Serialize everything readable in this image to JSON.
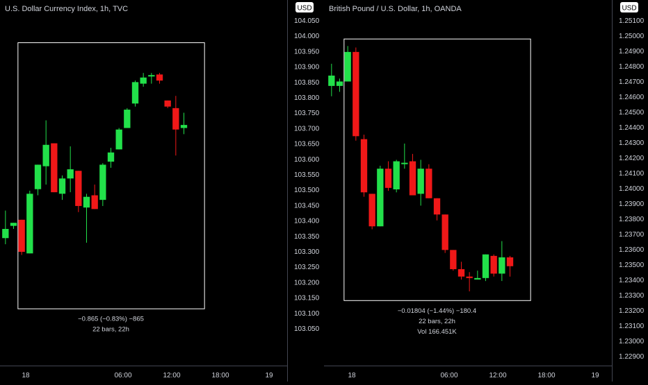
{
  "colors": {
    "background": "#000000",
    "text": "#d1d4dc",
    "up": "#22e04a",
    "down": "#f01818",
    "divider": "#434651",
    "box": "#ffffff",
    "badge_bg": "#ffffff",
    "badge_text": "#000000"
  },
  "chart_data": [
    {
      "type": "candlestick",
      "title": "U.S. Dollar Currency Index, 1h, TVC",
      "currency_badge": "USD",
      "ylim": [
        103.0,
        104.1
      ],
      "yticks": [
        "104.050",
        "104.000",
        "103.950",
        "103.900",
        "103.850",
        "103.800",
        "103.750",
        "103.700",
        "103.650",
        "103.600",
        "103.550",
        "103.500",
        "103.450",
        "103.400",
        "103.350",
        "103.300",
        "103.250",
        "103.200",
        "103.150",
        "103.100",
        "103.050"
      ],
      "xticks": [
        {
          "label": "18",
          "t": 18
        },
        {
          "label": "06:00",
          "t": 30
        },
        {
          "label": "12:00",
          "t": 36
        },
        {
          "label": "18:00",
          "t": 42
        },
        {
          "label": "19",
          "t": 48
        }
      ],
      "t_range": [
        15.5,
        50.5
      ],
      "box_t": [
        17.0,
        40.0
      ],
      "box_y": [
        103.155,
        104.025
      ],
      "candles": [
        {
          "t": 15.5,
          "o": 103.385,
          "h": 103.475,
          "l": 103.365,
          "c": 103.415
        },
        {
          "t": 16.5,
          "o": 103.425,
          "h": 103.435,
          "l": 103.415,
          "c": 103.435
        },
        {
          "t": 17.5,
          "o": 103.445,
          "h": 103.445,
          "l": 103.33,
          "c": 103.34
        },
        {
          "t": 18.5,
          "o": 103.335,
          "h": 103.54,
          "l": 103.335,
          "c": 103.53
        },
        {
          "t": 19.5,
          "o": 103.545,
          "h": 103.625,
          "l": 103.525,
          "c": 103.625
        },
        {
          "t": 20.5,
          "o": 103.62,
          "h": 103.77,
          "l": 103.56,
          "c": 103.69
        },
        {
          "t": 21.5,
          "o": 103.695,
          "h": 103.695,
          "l": 103.535,
          "c": 103.535
        },
        {
          "t": 22.5,
          "o": 103.53,
          "h": 103.59,
          "l": 103.51,
          "c": 103.58
        },
        {
          "t": 23.5,
          "o": 103.58,
          "h": 103.685,
          "l": 103.535,
          "c": 103.61
        },
        {
          "t": 24.5,
          "o": 103.605,
          "h": 103.605,
          "l": 103.47,
          "c": 103.49
        },
        {
          "t": 25.5,
          "o": 103.485,
          "h": 103.53,
          "l": 103.37,
          "c": 103.52
        },
        {
          "t": 26.5,
          "o": 103.525,
          "h": 103.56,
          "l": 103.48,
          "c": 103.48
        },
        {
          "t": 27.5,
          "o": 103.51,
          "h": 103.63,
          "l": 103.49,
          "c": 103.625
        },
        {
          "t": 28.5,
          "o": 103.635,
          "h": 103.68,
          "l": 103.615,
          "c": 103.665
        },
        {
          "t": 29.5,
          "o": 103.675,
          "h": 103.745,
          "l": 103.675,
          "c": 103.74
        },
        {
          "t": 30.5,
          "o": 103.745,
          "h": 103.81,
          "l": 103.745,
          "c": 103.805
        },
        {
          "t": 31.5,
          "o": 103.825,
          "h": 103.9,
          "l": 103.815,
          "c": 103.895
        },
        {
          "t": 32.5,
          "o": 103.89,
          "h": 103.925,
          "l": 103.88,
          "c": 103.91
        },
        {
          "t": 33.5,
          "o": 103.915,
          "h": 103.925,
          "l": 103.89,
          "c": 103.918
        },
        {
          "t": 34.5,
          "o": 103.92,
          "h": 103.925,
          "l": 103.89,
          "c": 103.9
        },
        {
          "t": 35.5,
          "o": 103.835,
          "h": 103.835,
          "l": 103.81,
          "c": 103.815
        },
        {
          "t": 36.5,
          "o": 103.81,
          "h": 103.85,
          "l": 103.655,
          "c": 103.74
        },
        {
          "t": 37.5,
          "o": 103.745,
          "h": 103.795,
          "l": 103.725,
          "c": 103.755
        }
      ],
      "stats": [
        "−0.865 (−0.83%) −865",
        "22 bars, 22h"
      ]
    },
    {
      "type": "candlestick",
      "title": "British Pound / U.S. Dollar, 1h, OANDA",
      "currency_badge": "USD",
      "ylim": [
        1.2285,
        1.2515
      ],
      "yticks": [
        "1.25100",
        "1.25000",
        "1.24900",
        "1.24800",
        "1.24700",
        "1.24600",
        "1.24500",
        "1.24400",
        "1.24300",
        "1.24200",
        "1.24100",
        "1.24000",
        "1.23900",
        "1.23800",
        "1.23700",
        "1.23600",
        "1.23500",
        "1.23400",
        "1.23300",
        "1.23200",
        "1.23100",
        "1.23000",
        "1.22900"
      ],
      "xticks": [
        {
          "label": "18",
          "t": 18
        },
        {
          "label": "06:00",
          "t": 30
        },
        {
          "label": "12:00",
          "t": 36
        },
        {
          "label": "18:00",
          "t": 42
        },
        {
          "label": "19",
          "t": 48
        }
      ],
      "t_range": [
        15.5,
        50.5
      ],
      "box_t": [
        17.0,
        40.0
      ],
      "box_y": [
        1.2325,
        1.2502
      ],
      "candles": [
        {
          "t": 15.5,
          "o": 1.247,
          "h": 1.2485,
          "l": 1.2463,
          "c": 1.2477
        },
        {
          "t": 16.5,
          "o": 1.247,
          "h": 1.2475,
          "l": 1.2466,
          "c": 1.2473
        },
        {
          "t": 17.5,
          "o": 1.2473,
          "h": 1.2497,
          "l": 1.2473,
          "c": 1.2493
        },
        {
          "t": 18.5,
          "o": 1.2493,
          "h": 1.2496,
          "l": 1.2433,
          "c": 1.2436
        },
        {
          "t": 19.5,
          "o": 1.2434,
          "h": 1.2437,
          "l": 1.2395,
          "c": 1.2398
        },
        {
          "t": 20.5,
          "o": 1.2397,
          "h": 1.2397,
          "l": 1.2373,
          "c": 1.2375
        },
        {
          "t": 21.5,
          "o": 1.2375,
          "h": 1.2416,
          "l": 1.2375,
          "c": 1.2414
        },
        {
          "t": 22.5,
          "o": 1.2414,
          "h": 1.2419,
          "l": 1.2399,
          "c": 1.2401
        },
        {
          "t": 23.5,
          "o": 1.24,
          "h": 1.242,
          "l": 1.2398,
          "c": 1.2419
        },
        {
          "t": 24.5,
          "o": 1.2418,
          "h": 1.2431,
          "l": 1.2414,
          "c": 1.2418
        },
        {
          "t": 25.5,
          "o": 1.2419,
          "h": 1.2424,
          "l": 1.2396,
          "c": 1.2396
        },
        {
          "t": 26.5,
          "o": 1.2397,
          "h": 1.242,
          "l": 1.2389,
          "c": 1.2414
        },
        {
          "t": 27.5,
          "o": 1.2414,
          "h": 1.2417,
          "l": 1.2394,
          "c": 1.2394
        },
        {
          "t": 28.5,
          "o": 1.2394,
          "h": 1.2394,
          "l": 1.2379,
          "c": 1.2383
        },
        {
          "t": 29.5,
          "o": 1.2383,
          "h": 1.2383,
          "l": 1.2357,
          "c": 1.2359
        },
        {
          "t": 30.5,
          "o": 1.2359,
          "h": 1.2359,
          "l": 1.2345,
          "c": 1.2346
        },
        {
          "t": 31.5,
          "o": 1.2346,
          "h": 1.2351,
          "l": 1.2339,
          "c": 1.2341
        },
        {
          "t": 32.5,
          "o": 1.2341,
          "h": 1.2344,
          "l": 1.2331,
          "c": 1.234
        },
        {
          "t": 33.5,
          "o": 1.2339,
          "h": 1.2345,
          "l": 1.2339,
          "c": 1.234
        },
        {
          "t": 34.5,
          "o": 1.234,
          "h": 1.2356,
          "l": 1.2338,
          "c": 1.2356
        },
        {
          "t": 35.5,
          "o": 1.2355,
          "h": 1.2356,
          "l": 1.2341,
          "c": 1.2343
        },
        {
          "t": 36.5,
          "o": 1.2343,
          "h": 1.2365,
          "l": 1.2338,
          "c": 1.2354
        },
        {
          "t": 37.5,
          "o": 1.2354,
          "h": 1.2355,
          "l": 1.2341,
          "c": 1.2348
        }
      ],
      "stats": [
        "−0.01804 (−1.44%) −180.4",
        "22 bars, 22h",
        "Vol 166.451K"
      ]
    }
  ]
}
